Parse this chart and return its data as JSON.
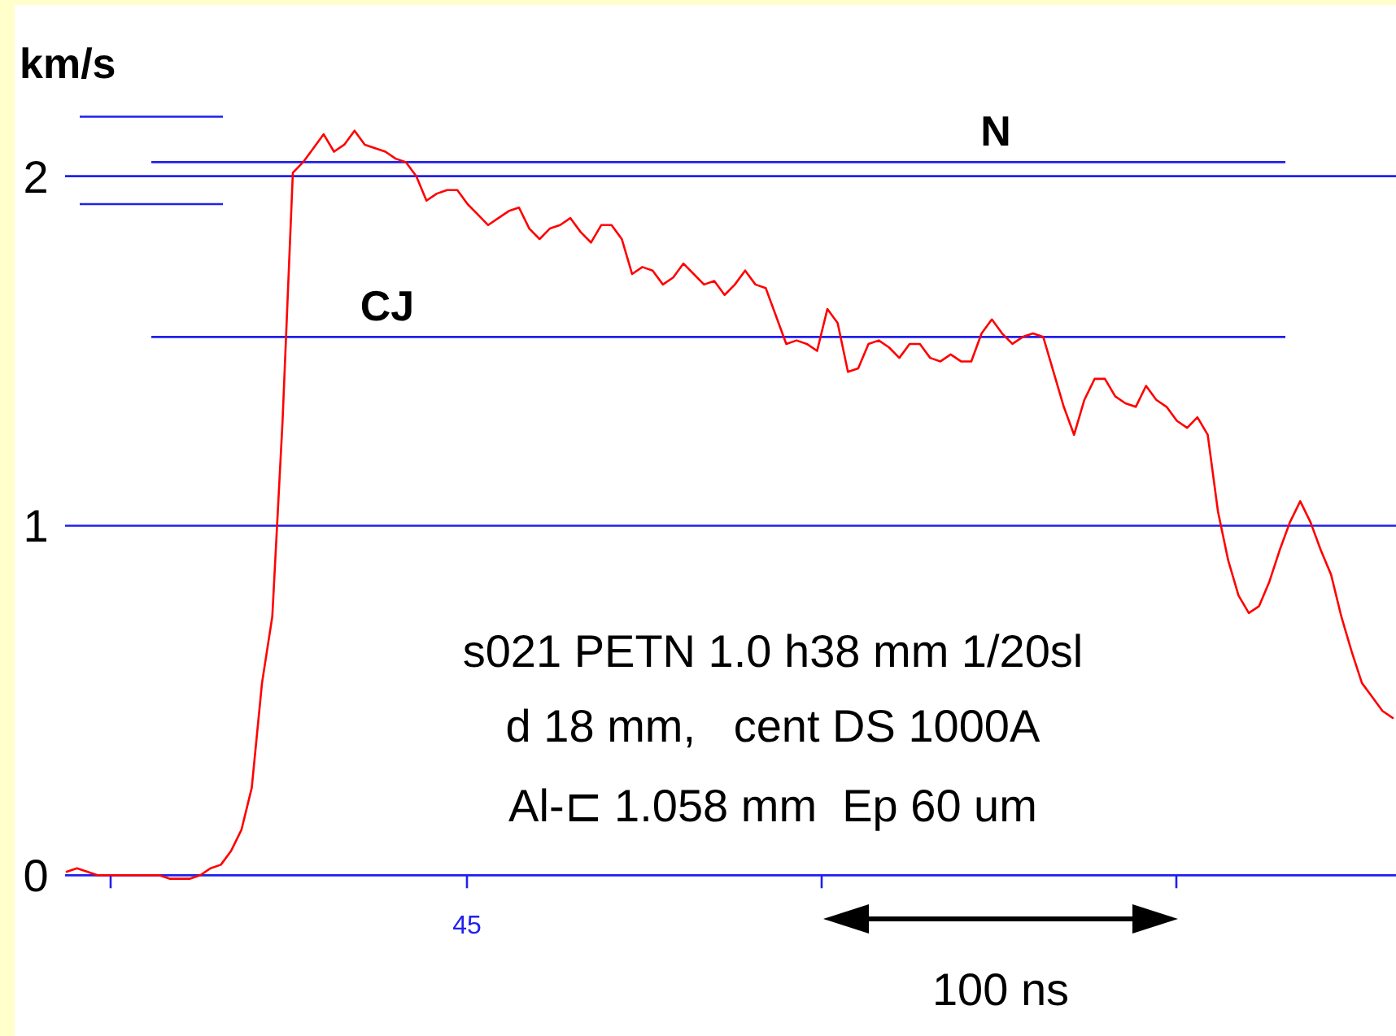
{
  "chart_data": {
    "type": "line",
    "ylabel": "km/s",
    "categories": [
      null,
      null,
      null,
      null,
      null,
      null,
      null,
      null,
      null,
      null,
      null,
      null,
      null,
      null,
      null,
      null,
      null,
      null,
      null,
      null,
      null,
      null,
      null,
      null,
      null,
      null,
      null,
      null,
      null,
      null,
      null,
      null,
      null,
      null,
      null,
      null,
      null,
      null,
      null,
      null,
      null,
      null,
      null,
      null,
      null,
      null,
      null,
      null,
      null,
      null,
      null,
      null,
      null,
      null,
      null,
      null,
      null,
      null,
      null,
      null,
      null,
      null,
      null,
      null,
      null,
      null,
      null,
      null,
      null,
      null,
      null,
      null,
      null,
      null,
      null,
      null,
      null,
      null,
      null,
      null,
      null,
      null,
      null,
      null,
      null,
      null,
      null,
      null,
      null,
      null,
      null,
      null,
      null,
      null,
      null,
      null,
      null,
      null,
      null,
      null,
      null,
      null,
      null,
      null,
      null,
      null,
      null,
      null,
      null,
      null,
      null,
      null,
      null,
      null,
      null,
      null,
      null,
      null,
      null,
      null,
      null,
      null,
      null,
      null,
      null,
      null,
      null,
      null,
      null,
      null
    ],
    "ylim": [
      -0.46,
      2.49
    ],
    "yticks": [
      0,
      1,
      2
    ],
    "grid": "y",
    "marker": "none",
    "line_style": "solid",
    "series": [
      {
        "color": "#ff0000",
        "values": [
          0.01,
          0.02,
          0.01,
          0,
          0,
          0,
          0,
          0,
          0,
          0,
          -0.01,
          -0.01,
          -0.01,
          0,
          0.02,
          0.03,
          0.07,
          0.13,
          0.25,
          0.55,
          0.74,
          1.3,
          2.01,
          2.04,
          2.08,
          2.12,
          2.07,
          2.09,
          2.13,
          2.09,
          2.08,
          2.07,
          2.05,
          2.04,
          2,
          1.93,
          1.95,
          1.96,
          1.96,
          1.92,
          1.89,
          1.86,
          1.88,
          1.9,
          1.91,
          1.85,
          1.82,
          1.85,
          1.86,
          1.88,
          1.84,
          1.81,
          1.86,
          1.86,
          1.82,
          1.72,
          1.74,
          1.73,
          1.69,
          1.71,
          1.75,
          1.72,
          1.69,
          1.7,
          1.66,
          1.69,
          1.73,
          1.69,
          1.68,
          1.6,
          1.52,
          1.53,
          1.52,
          1.5,
          1.62,
          1.58,
          1.44,
          1.45,
          1.52,
          1.53,
          1.51,
          1.48,
          1.52,
          1.52,
          1.48,
          1.47,
          1.49,
          1.47,
          1.47,
          1.55,
          1.59,
          1.55,
          1.52,
          1.54,
          1.55,
          1.54,
          1.44,
          1.34,
          1.26,
          1.36,
          1.42,
          1.42,
          1.37,
          1.35,
          1.34,
          1.4,
          1.36,
          1.34,
          1.3,
          1.28,
          1.31,
          1.26,
          1.04,
          0.9,
          0.8,
          0.75,
          0.77,
          0.84,
          0.93,
          1.01,
          1.07,
          1.01,
          0.93,
          0.86,
          0.74,
          0.64,
          0.55,
          0.51,
          0.47,
          0.45
        ]
      }
    ],
    "ref_lines": [
      {
        "axis": "y",
        "value": 2.04,
        "label": "N",
        "color": "#2020ee"
      },
      {
        "axis": "y",
        "value": 1.54,
        "label": "CJ",
        "color": "#2020ee"
      },
      {
        "axis": "y",
        "value": 2.17,
        "label": null,
        "color": "#2020ee"
      },
      {
        "axis": "y",
        "value": 1.92,
        "label": null,
        "color": "#2020ee"
      }
    ],
    "annotations": [
      "45",
      "s021 PETN 1.0 h38 mm 1/20sl",
      "d 18 mm,   cent DS 1000A",
      "Al-⊏ 1.058 mm  Ep 60 um",
      "100 ns"
    ]
  }
}
